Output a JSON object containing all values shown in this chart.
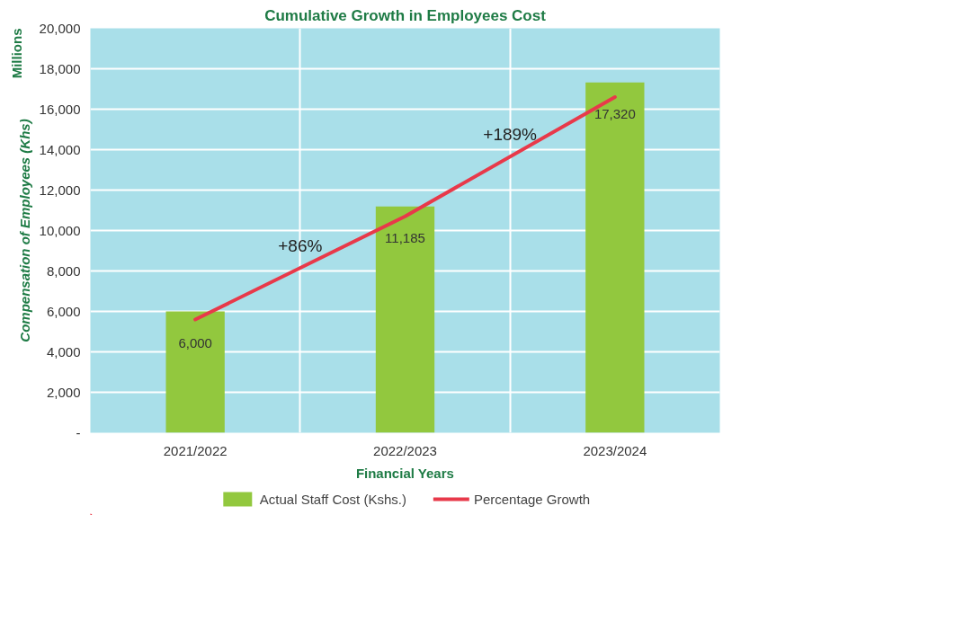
{
  "chart_data": {
    "type": "bar",
    "title": "Cumulative Growth in Employees Cost",
    "xlabel": "Financial Years",
    "ylabel": "Compensation of Employees (Khs)",
    "categories": [
      "2021/2022",
      "2022/2023",
      "2023/2024"
    ],
    "series": [
      {
        "name": "Actual Staff Cost (Kshs.)",
        "color": "#92c83e",
        "values": [
          6000,
          11185,
          17320
        ],
        "value_labels": [
          "6,000",
          "11,185",
          "17,320"
        ]
      },
      {
        "name": "Percentage Growth",
        "type": "line",
        "color": "#e8394a",
        "values": [
          5600,
          10700,
          16600
        ]
      }
    ],
    "annotations": [
      "Millions",
      "+86%",
      "+189%"
    ],
    "ylim": [
      0,
      20000
    ],
    "yticks": [
      {
        "value": 0,
        "label": "-"
      },
      {
        "value": 2000,
        "label": "2,000"
      },
      {
        "value": 4000,
        "label": "4,000"
      },
      {
        "value": 6000,
        "label": "6,000"
      },
      {
        "value": 8000,
        "label": "8,000"
      },
      {
        "value": 10000,
        "label": "10,000"
      },
      {
        "value": 12000,
        "label": "12,000"
      },
      {
        "value": 14000,
        "label": "14,000"
      },
      {
        "value": 16000,
        "label": "16,000"
      },
      {
        "value": 18000,
        "label": "18,000"
      },
      {
        "value": 20000,
        "label": "20,000"
      }
    ],
    "grid": true,
    "legend": "bottom"
  }
}
